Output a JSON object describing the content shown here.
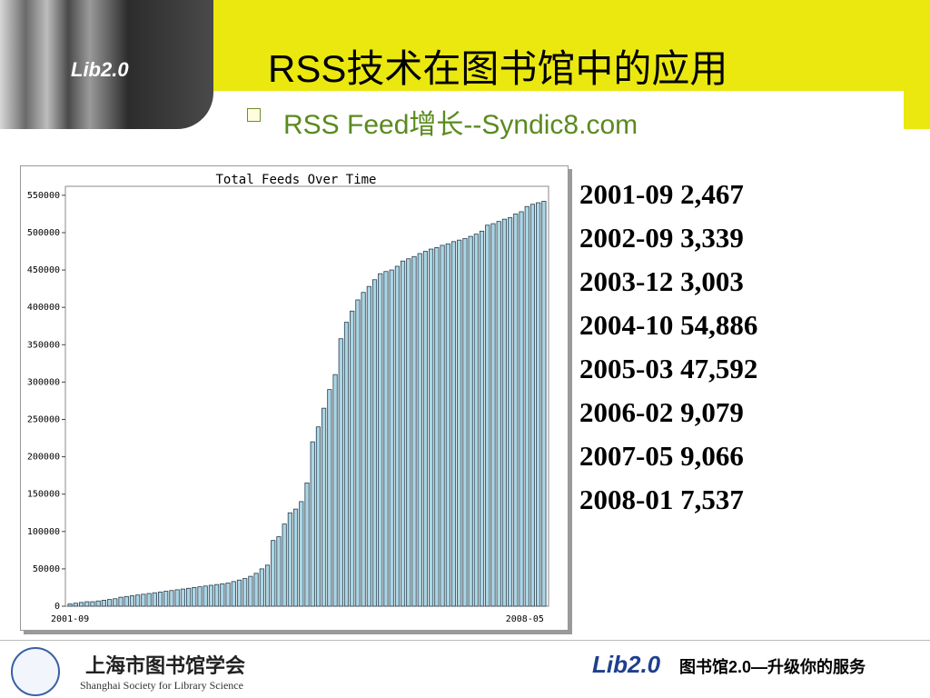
{
  "slide": {
    "logo": "Lib2.0",
    "title": "RSS技术在图书馆中的应用",
    "subtitle": "RSS Feed增长--Syndic8.com",
    "stats": [
      "2001-09 2,467",
      "2002-09 3,339",
      "2003-12 3,003",
      "2004-10 54,886",
      "2005-03 47,592",
      "2006-02 9,079",
      "2007-05 9,066",
      "2008-01 7,537"
    ],
    "footer_org_cn": "上海市图书馆学会",
    "footer_org_en": "Shanghai Society for Library Science",
    "footer_logo": "Lib2.0",
    "footer_slogan": "图书馆2.0—升级你的服务"
  },
  "chart_data": {
    "type": "bar",
    "title": "Total Feeds Over Time",
    "color": "#a9d6e5",
    "categories": [
      "2001-09",
      null,
      null,
      null,
      null,
      null,
      null,
      null,
      null,
      null,
      null,
      null,
      null,
      null,
      null,
      null,
      null,
      null,
      null,
      null,
      null,
      null,
      null,
      null,
      null,
      null,
      null,
      null,
      null,
      null,
      null,
      null,
      null,
      null,
      null,
      null,
      null,
      null,
      null,
      null,
      null,
      null,
      null,
      null,
      null,
      null,
      null,
      null,
      null,
      null,
      null,
      null,
      null,
      null,
      null,
      null,
      null,
      null,
      null,
      null,
      null,
      null,
      null,
      null,
      null,
      null,
      null,
      null,
      null,
      null,
      null,
      null,
      null,
      null,
      null,
      null,
      null,
      null,
      null,
      null,
      null,
      null,
      null,
      null,
      "2008-05"
    ],
    "values": [
      3000,
      4000,
      5000,
      6000,
      6000,
      7000,
      8000,
      9000,
      10000,
      12000,
      13000,
      14000,
      15000,
      16000,
      17000,
      18000,
      19000,
      20000,
      21000,
      22000,
      23000,
      24000,
      25000,
      26000,
      27000,
      28000,
      29000,
      30000,
      31000,
      33000,
      35000,
      37000,
      40000,
      44000,
      50000,
      55000,
      88000,
      93000,
      110000,
      125000,
      130000,
      140000,
      165000,
      220000,
      240000,
      265000,
      290000,
      310000,
      358000,
      380000,
      395000,
      410000,
      420000,
      428000,
      437000,
      445000,
      448000,
      450000,
      455000,
      462000,
      465000,
      468000,
      472000,
      475000,
      478000,
      480000,
      483000,
      485000,
      488000,
      490000,
      492000,
      495000,
      498000,
      502000,
      510000,
      512000,
      515000,
      518000,
      520000,
      525000,
      528000,
      535000,
      538000,
      540000,
      542000
    ],
    "ylim": [
      0,
      562000
    ],
    "yticks": [
      0,
      50000,
      100000,
      150000,
      200000,
      250000,
      300000,
      350000,
      400000,
      450000,
      500000,
      550000
    ]
  }
}
